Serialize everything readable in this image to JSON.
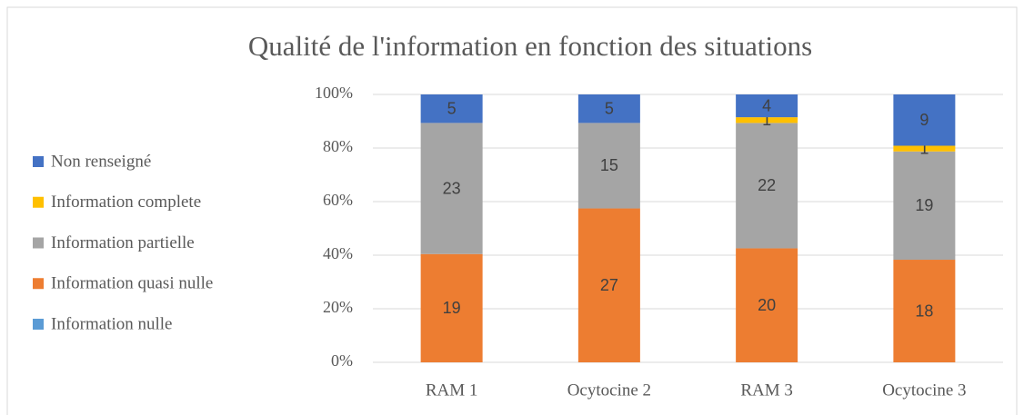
{
  "chart_data": {
    "type": "bar",
    "stacked": "percent",
    "title": "Qualité de l'information en fonction des situations",
    "categories": [
      "RAM 1",
      "Ocytocine 2",
      "RAM 3",
      "Ocytocine 3"
    ],
    "series": [
      {
        "name": "Information nulle",
        "color": "#5b9bd5",
        "values": [
          0,
          0,
          0,
          0
        ]
      },
      {
        "name": "Information quasi nulle",
        "color": "#ed7d31",
        "values": [
          19,
          27,
          20,
          18
        ]
      },
      {
        "name": "Information partielle",
        "color": "#a5a5a5",
        "values": [
          23,
          15,
          22,
          19
        ]
      },
      {
        "name": "Information complete",
        "color": "#ffc000",
        "values": [
          0,
          0,
          1,
          1
        ]
      },
      {
        "name": "Non renseigné",
        "color": "#4472c4",
        "values": [
          5,
          5,
          4,
          9
        ]
      }
    ],
    "ylim": [
      0,
      100
    ],
    "yticks": [
      {
        "value": 0,
        "label": "0%"
      },
      {
        "value": 20,
        "label": "20%"
      },
      {
        "value": 40,
        "label": "40%"
      },
      {
        "value": 60,
        "label": "60%"
      },
      {
        "value": 80,
        "label": "80%"
      },
      {
        "value": 100,
        "label": "100%"
      }
    ],
    "grid": true,
    "legend": "left"
  }
}
